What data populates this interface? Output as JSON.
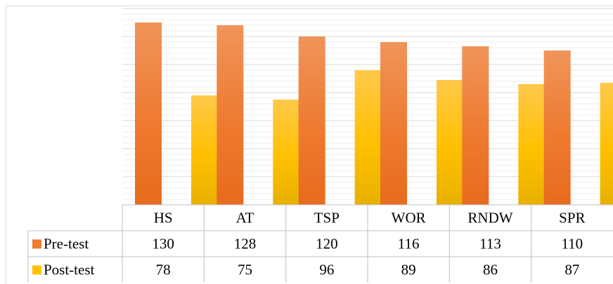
{
  "chart_data": {
    "type": "bar",
    "categories": [
      "HS",
      "AT",
      "TSP",
      "WOR",
      "RNDW",
      "SPR"
    ],
    "series": [
      {
        "name": "Pre-test",
        "values": [
          130,
          128,
          120,
          116,
          113,
          110
        ],
        "color": "#ED7D31"
      },
      {
        "name": "Post-test",
        "values": [
          78,
          75,
          96,
          89,
          86,
          87
        ],
        "color": "#FFC000"
      }
    ],
    "ylim": [
      0,
      140
    ],
    "grid": true,
    "legend": "data-table"
  }
}
